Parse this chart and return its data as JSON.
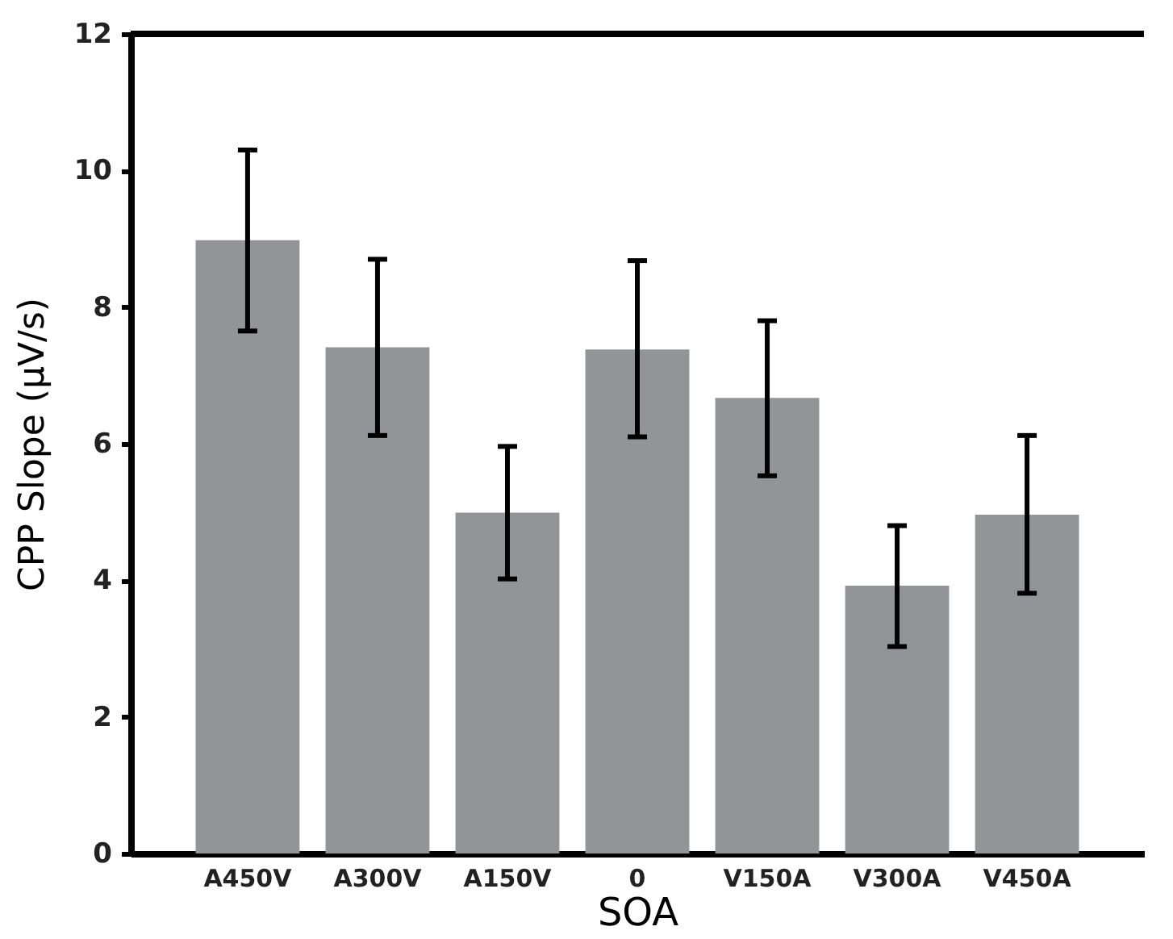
{
  "chart_data": {
    "type": "bar",
    "xlabel": "SOA",
    "ylabel": "CPP Slope (μV/s)",
    "categories": [
      "A450V",
      "A300V",
      "A150V",
      "0",
      "V150A",
      "V300A",
      "V450A"
    ],
    "values": [
      8.98,
      7.41,
      4.99,
      7.38,
      6.67,
      3.92,
      4.96
    ],
    "errors": [
      [
        7.65,
        10.3
      ],
      [
        6.12,
        8.7
      ],
      [
        4.02,
        5.96
      ],
      [
        6.1,
        8.68
      ],
      [
        5.53,
        7.8
      ],
      [
        3.03,
        4.8
      ],
      [
        3.81,
        6.12
      ]
    ],
    "color": "#939497",
    "ylim": [
      0,
      12
    ],
    "yticks": [
      0,
      2,
      4,
      6,
      8,
      10,
      12
    ],
    "grid": false
  }
}
